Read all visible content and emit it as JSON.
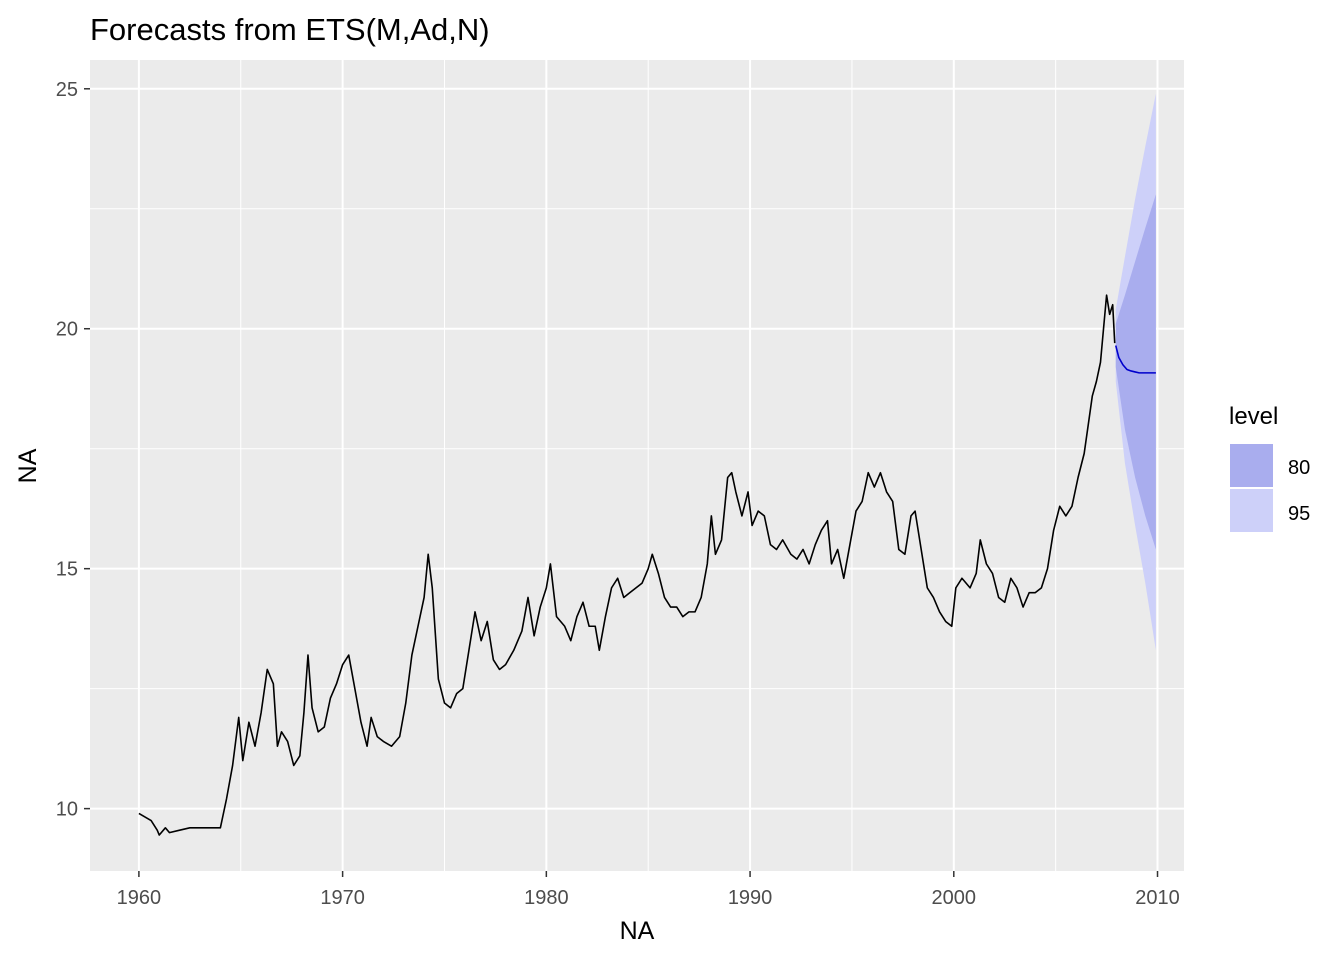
{
  "chart_data": {
    "type": "line",
    "title": "Forecasts from ETS(M,Ad,N)",
    "xlabel": "NA",
    "ylabel": "NA",
    "xlim": [
      1957.6,
      2011.3
    ],
    "ylim": [
      8.7,
      25.6
    ],
    "x_ticks": [
      1960,
      1970,
      1980,
      1990,
      2000,
      2010
    ],
    "x_tick_labels": [
      "1960",
      "1970",
      "1980",
      "1990",
      "2000",
      "2010"
    ],
    "y_ticks": [
      10,
      15,
      20,
      25
    ],
    "y_tick_labels": [
      "10",
      "15",
      "20",
      "25"
    ],
    "grid": true,
    "background": "#ebebeb",
    "legend": {
      "title": "level",
      "position": "right",
      "entries": [
        {
          "label": "80",
          "color": "#a9adee"
        },
        {
          "label": "95",
          "color": "#cdd0f9"
        }
      ]
    },
    "series": [
      {
        "name": "observed",
        "color": "#000000",
        "points": [
          [
            1960.0,
            9.9
          ],
          [
            1960.4,
            9.8
          ],
          [
            1960.6,
            9.75
          ],
          [
            1960.9,
            9.55
          ],
          [
            1961.0,
            9.45
          ],
          [
            1961.3,
            9.6
          ],
          [
            1961.5,
            9.5
          ],
          [
            1962.0,
            9.55
          ],
          [
            1962.5,
            9.6
          ],
          [
            1963.0,
            9.6
          ],
          [
            1963.5,
            9.6
          ],
          [
            1964.0,
            9.6
          ],
          [
            1964.3,
            10.2
          ],
          [
            1964.6,
            10.9
          ],
          [
            1964.9,
            11.9
          ],
          [
            1965.1,
            11.0
          ],
          [
            1965.4,
            11.8
          ],
          [
            1965.7,
            11.3
          ],
          [
            1966.0,
            12.0
          ],
          [
            1966.3,
            12.9
          ],
          [
            1966.6,
            12.6
          ],
          [
            1966.8,
            11.3
          ],
          [
            1967.0,
            11.6
          ],
          [
            1967.3,
            11.4
          ],
          [
            1967.6,
            10.9
          ],
          [
            1967.9,
            11.1
          ],
          [
            1968.1,
            12.0
          ],
          [
            1968.3,
            13.2
          ],
          [
            1968.5,
            12.1
          ],
          [
            1968.8,
            11.6
          ],
          [
            1969.1,
            11.7
          ],
          [
            1969.4,
            12.3
          ],
          [
            1969.7,
            12.6
          ],
          [
            1970.0,
            13.0
          ],
          [
            1970.3,
            13.2
          ],
          [
            1970.6,
            12.5
          ],
          [
            1970.9,
            11.8
          ],
          [
            1971.2,
            11.3
          ],
          [
            1971.4,
            11.9
          ],
          [
            1971.7,
            11.5
          ],
          [
            1972.0,
            11.4
          ],
          [
            1972.4,
            11.3
          ],
          [
            1972.8,
            11.5
          ],
          [
            1973.1,
            12.2
          ],
          [
            1973.4,
            13.2
          ],
          [
            1973.7,
            13.8
          ],
          [
            1974.0,
            14.4
          ],
          [
            1974.2,
            15.3
          ],
          [
            1974.4,
            14.6
          ],
          [
            1974.7,
            12.7
          ],
          [
            1975.0,
            12.2
          ],
          [
            1975.3,
            12.1
          ],
          [
            1975.6,
            12.4
          ],
          [
            1975.9,
            12.5
          ],
          [
            1976.2,
            13.3
          ],
          [
            1976.5,
            14.1
          ],
          [
            1976.8,
            13.5
          ],
          [
            1977.1,
            13.9
          ],
          [
            1977.4,
            13.1
          ],
          [
            1977.7,
            12.9
          ],
          [
            1978.0,
            13.0
          ],
          [
            1978.4,
            13.3
          ],
          [
            1978.8,
            13.7
          ],
          [
            1979.1,
            14.4
          ],
          [
            1979.4,
            13.6
          ],
          [
            1979.7,
            14.2
          ],
          [
            1980.0,
            14.6
          ],
          [
            1980.2,
            15.1
          ],
          [
            1980.5,
            14.0
          ],
          [
            1980.9,
            13.8
          ],
          [
            1981.2,
            13.5
          ],
          [
            1981.5,
            14.0
          ],
          [
            1981.8,
            14.3
          ],
          [
            1982.1,
            13.8
          ],
          [
            1982.4,
            13.8
          ],
          [
            1982.6,
            13.3
          ],
          [
            1982.9,
            14.0
          ],
          [
            1983.2,
            14.6
          ],
          [
            1983.5,
            14.8
          ],
          [
            1983.8,
            14.4
          ],
          [
            1984.1,
            14.5
          ],
          [
            1984.4,
            14.6
          ],
          [
            1984.7,
            14.7
          ],
          [
            1985.0,
            15.0
          ],
          [
            1985.2,
            15.3
          ],
          [
            1985.5,
            14.9
          ],
          [
            1985.8,
            14.4
          ],
          [
            1986.1,
            14.2
          ],
          [
            1986.4,
            14.2
          ],
          [
            1986.7,
            14.0
          ],
          [
            1987.0,
            14.1
          ],
          [
            1987.3,
            14.1
          ],
          [
            1987.6,
            14.4
          ],
          [
            1987.9,
            15.1
          ],
          [
            1988.1,
            16.1
          ],
          [
            1988.3,
            15.3
          ],
          [
            1988.6,
            15.6
          ],
          [
            1988.9,
            16.9
          ],
          [
            1989.1,
            17.0
          ],
          [
            1989.3,
            16.6
          ],
          [
            1989.6,
            16.1
          ],
          [
            1989.9,
            16.6
          ],
          [
            1990.1,
            15.9
          ],
          [
            1990.4,
            16.2
          ],
          [
            1990.7,
            16.1
          ],
          [
            1991.0,
            15.5
          ],
          [
            1991.3,
            15.4
          ],
          [
            1991.6,
            15.6
          ],
          [
            1992.0,
            15.3
          ],
          [
            1992.3,
            15.2
          ],
          [
            1992.6,
            15.4
          ],
          [
            1992.9,
            15.1
          ],
          [
            1993.2,
            15.5
          ],
          [
            1993.5,
            15.8
          ],
          [
            1993.8,
            16.0
          ],
          [
            1994.0,
            15.1
          ],
          [
            1994.3,
            15.4
          ],
          [
            1994.6,
            14.8
          ],
          [
            1994.9,
            15.5
          ],
          [
            1995.2,
            16.2
          ],
          [
            1995.5,
            16.4
          ],
          [
            1995.8,
            17.0
          ],
          [
            1996.1,
            16.7
          ],
          [
            1996.4,
            17.0
          ],
          [
            1996.7,
            16.6
          ],
          [
            1997.0,
            16.4
          ],
          [
            1997.3,
            15.4
          ],
          [
            1997.6,
            15.3
          ],
          [
            1997.9,
            16.1
          ],
          [
            1998.1,
            16.2
          ],
          [
            1998.4,
            15.4
          ],
          [
            1998.7,
            14.6
          ],
          [
            1999.0,
            14.4
          ],
          [
            1999.3,
            14.1
          ],
          [
            1999.6,
            13.9
          ],
          [
            1999.9,
            13.8
          ],
          [
            2000.1,
            14.6
          ],
          [
            2000.4,
            14.8
          ],
          [
            2000.8,
            14.6
          ],
          [
            2001.1,
            14.9
          ],
          [
            2001.3,
            15.6
          ],
          [
            2001.6,
            15.1
          ],
          [
            2001.9,
            14.9
          ],
          [
            2002.2,
            14.4
          ],
          [
            2002.5,
            14.3
          ],
          [
            2002.8,
            14.8
          ],
          [
            2003.1,
            14.6
          ],
          [
            2003.4,
            14.2
          ],
          [
            2003.7,
            14.5
          ],
          [
            2004.0,
            14.5
          ],
          [
            2004.3,
            14.6
          ],
          [
            2004.6,
            15.0
          ],
          [
            2004.9,
            15.8
          ],
          [
            2005.2,
            16.3
          ],
          [
            2005.5,
            16.1
          ],
          [
            2005.8,
            16.3
          ],
          [
            2006.1,
            16.9
          ],
          [
            2006.4,
            17.4
          ],
          [
            2006.6,
            18.0
          ],
          [
            2006.8,
            18.6
          ],
          [
            2007.0,
            18.9
          ],
          [
            2007.2,
            19.3
          ],
          [
            2007.35,
            20.0
          ],
          [
            2007.5,
            20.7
          ],
          [
            2007.65,
            20.3
          ],
          [
            2007.8,
            20.5
          ],
          [
            2007.9,
            19.7
          ]
        ]
      },
      {
        "name": "forecast",
        "color": "#0000cc",
        "points": [
          [
            2007.95,
            19.65
          ],
          [
            2008.1,
            19.4
          ],
          [
            2008.3,
            19.25
          ],
          [
            2008.5,
            19.15
          ],
          [
            2008.7,
            19.12
          ],
          [
            2008.9,
            19.1
          ],
          [
            2009.1,
            19.08
          ],
          [
            2009.3,
            19.08
          ],
          [
            2009.6,
            19.08
          ],
          [
            2009.92,
            19.08
          ]
        ]
      }
    ],
    "intervals": [
      {
        "level": "95",
        "color": "#cdd0f9",
        "x": [
          2007.95,
          2008.4,
          2008.9,
          2009.4,
          2009.92
        ],
        "lower": [
          18.9,
          17.2,
          15.9,
          14.7,
          13.3
        ],
        "upper": [
          20.4,
          21.5,
          22.7,
          23.8,
          24.9
        ]
      },
      {
        "level": "80",
        "color": "#a9adee",
        "x": [
          2007.95,
          2008.4,
          2008.9,
          2009.4,
          2009.92
        ],
        "lower": [
          19.2,
          17.9,
          16.9,
          16.1,
          15.4
        ],
        "upper": [
          20.1,
          20.7,
          21.4,
          22.1,
          22.8
        ]
      }
    ]
  }
}
